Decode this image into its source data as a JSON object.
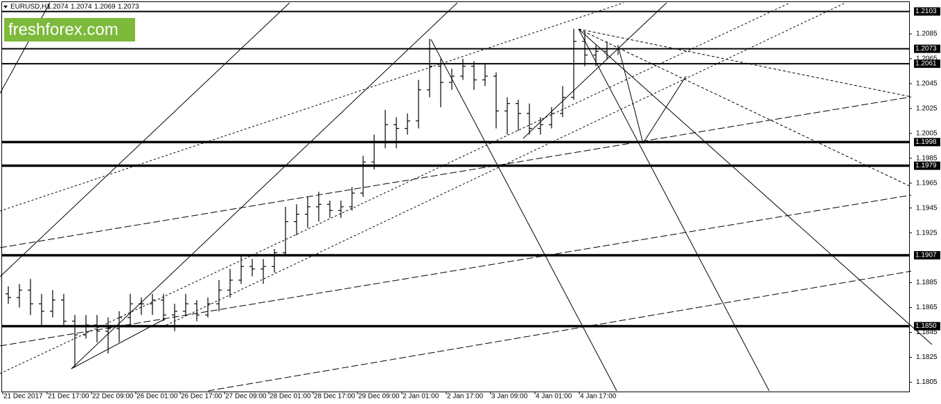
{
  "chart_data": {
    "type": "candlestick",
    "title": "EURUSD,H1",
    "quote": [
      1.2074,
      1.2074,
      1.2069,
      1.2073
    ],
    "watermark": "freshforex.com",
    "categories": [
      "21 Dec 2017",
      null,
      null,
      null,
      "21 Dec 17:00",
      null,
      null,
      null,
      "22 Dec 09:00",
      null,
      null,
      null,
      "26 Dec 01:00",
      null,
      null,
      null,
      "26 Dec 17:00",
      null,
      null,
      null,
      "27 Dec 09:00",
      null,
      null,
      null,
      "28 Dec 01:00",
      null,
      null,
      null,
      "28 Dec 17:00",
      null,
      null,
      null,
      "29 Dec 09:00",
      null,
      null,
      null,
      "2 Jan 01:00",
      null,
      null,
      null,
      "2 Jan 17:00",
      null,
      null,
      null,
      "3 Jan 09:00",
      null,
      null,
      null,
      "4 Jan 01:00",
      null,
      null,
      null,
      "4 Jan 17:00",
      null,
      null,
      null
    ],
    "open": [
      1.1876,
      1.1873,
      1.1879,
      1.1868,
      1.1862,
      1.1871,
      1.1854,
      1.1843,
      1.1851,
      1.1846,
      1.1848,
      1.1857,
      1.1868,
      1.1868,
      1.1871,
      1.1859,
      1.1862,
      1.1868,
      1.1859,
      1.1868,
      1.1879,
      1.1887,
      1.1898,
      1.1896,
      1.1898,
      1.1909,
      1.1934,
      1.194,
      1.1946,
      1.1948,
      1.1943,
      1.1946,
      1.1957,
      1.1982,
      1.1998,
      1.2012,
      1.2009,
      1.2015,
      1.204,
      1.2059,
      1.2046,
      1.2051,
      1.2059,
      1.2048,
      1.2051,
      1.2023,
      1.2029,
      1.2021,
      1.2009,
      1.2012,
      1.2021,
      1.2034,
      1.2079,
      1.2068,
      1.2071,
      1.2073
    ],
    "high": [
      1.1882,
      1.1884,
      1.1888,
      1.1876,
      1.1879,
      1.1876,
      1.1859,
      1.1859,
      1.1859,
      1.1857,
      1.1862,
      1.1876,
      1.1873,
      1.1876,
      1.1876,
      1.1868,
      1.1876,
      1.1871,
      1.1873,
      1.1887,
      1.1896,
      1.1907,
      1.1904,
      1.1904,
      1.1912,
      1.1946,
      1.1948,
      1.1954,
      1.1958,
      1.1951,
      1.1951,
      1.1962,
      1.1987,
      1.2004,
      1.2024,
      1.2018,
      1.2021,
      1.2048,
      1.2081,
      1.2065,
      1.2057,
      1.2065,
      1.2063,
      1.2061,
      1.2054,
      1.2034,
      1.2032,
      1.2029,
      1.2018,
      1.2026,
      1.2043,
      1.2089,
      1.2087,
      1.2076,
      1.2079,
      1.2076
    ],
    "low": [
      1.1868,
      1.1865,
      1.1859,
      1.1851,
      1.1857,
      1.1851,
      1.1817,
      1.184,
      1.1837,
      1.1828,
      1.1837,
      1.1851,
      1.1859,
      1.1859,
      1.1854,
      1.1846,
      1.1859,
      1.1854,
      1.1857,
      1.1862,
      1.1873,
      1.1884,
      1.189,
      1.1884,
      1.1893,
      1.1907,
      1.1923,
      1.1929,
      1.1934,
      1.1937,
      1.1937,
      1.1943,
      1.1954,
      1.1976,
      1.1993,
      1.1993,
      1.2004,
      1.2009,
      1.2034,
      1.2026,
      1.204,
      1.2048,
      1.204,
      1.2043,
      1.2009,
      1.2004,
      1.2007,
      1.2004,
      1.2004,
      1.2009,
      1.2018,
      1.2032,
      1.2059,
      1.2059,
      1.2065,
      1.2068
    ],
    "close": [
      1.1873,
      1.1879,
      1.1868,
      1.1862,
      1.1871,
      1.1854,
      1.1843,
      1.1851,
      1.1846,
      1.1848,
      1.1857,
      1.1868,
      1.1868,
      1.1871,
      1.1859,
      1.1862,
      1.1868,
      1.1859,
      1.1868,
      1.1879,
      1.1887,
      1.1898,
      1.1896,
      1.1898,
      1.1909,
      1.1934,
      1.194,
      1.1946,
      1.1948,
      1.1943,
      1.1946,
      1.1957,
      1.1982,
      1.1998,
      1.2012,
      1.2009,
      1.2015,
      1.204,
      1.2059,
      1.2046,
      1.2051,
      1.2059,
      1.2048,
      1.2051,
      1.2023,
      1.2029,
      1.2021,
      1.2009,
      1.2012,
      1.2021,
      1.2034,
      1.2079,
      1.2068,
      1.2071,
      1.2073,
      1.2073
    ],
    "color": "#000000",
    "ylim": [
      1.1798,
      1.211
    ],
    "yticks": [
      1.2085,
      1.2065,
      1.2045,
      1.2025,
      1.2005,
      1.1985,
      1.1965,
      1.1945,
      1.1925,
      1.1885,
      1.1865,
      1.1845,
      1.1825,
      1.1805
    ],
    "levels": [
      1.2103,
      1.2073,
      1.2061,
      1.1998,
      1.1979,
      1.1907,
      {
        "value": 1.185,
        "label": "1.1850"
      }
    ]
  }
}
